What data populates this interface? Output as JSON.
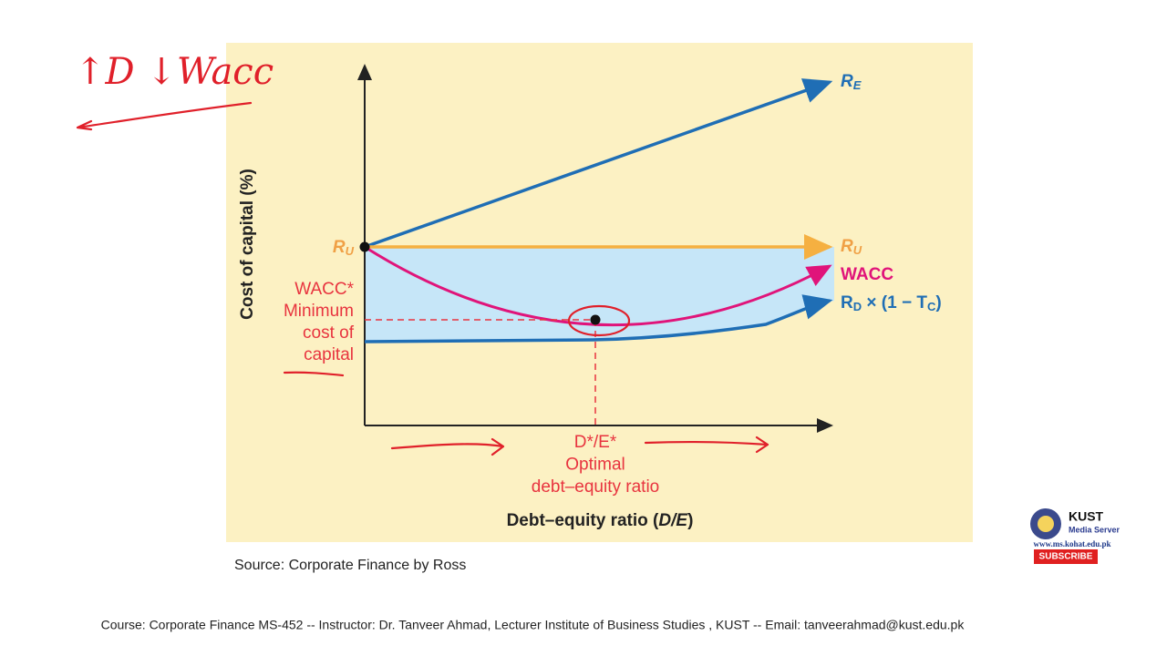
{
  "annotation": "↑D ↓Wacc",
  "diagram": {
    "y_axis_title": "Cost of capital (%)",
    "x_axis_title": [
      "Debt–equity ratio (",
      "D/E",
      ")"
    ],
    "origin_label": [
      "R",
      "U"
    ],
    "minimum_label": [
      "WACC*",
      "Minimum",
      "cost of",
      "capital"
    ],
    "line_labels": {
      "re": [
        "R",
        "E"
      ],
      "ru": [
        "R",
        "U"
      ],
      "wacc": "WACC",
      "rd": [
        "R",
        "D",
        " × (1 − T",
        "C",
        ")"
      ]
    },
    "optimum_label": [
      "D*/E*",
      "Optimal",
      "debt–equity ratio"
    ]
  },
  "source": "Source: Corporate Finance by Ross",
  "footer": "Course: Corporate Finance MS-452 -- Instructor: Dr. Tanveer Ahmad, Lecturer Institute of Business Studies , KUST -- Email: tanveerahmad@kust.edu.pk",
  "logo": {
    "name": "KUST",
    "subtitle": "Media Server",
    "url": "www.ms.kohat.edu.pk",
    "button": "SUBSCRIBE"
  }
}
